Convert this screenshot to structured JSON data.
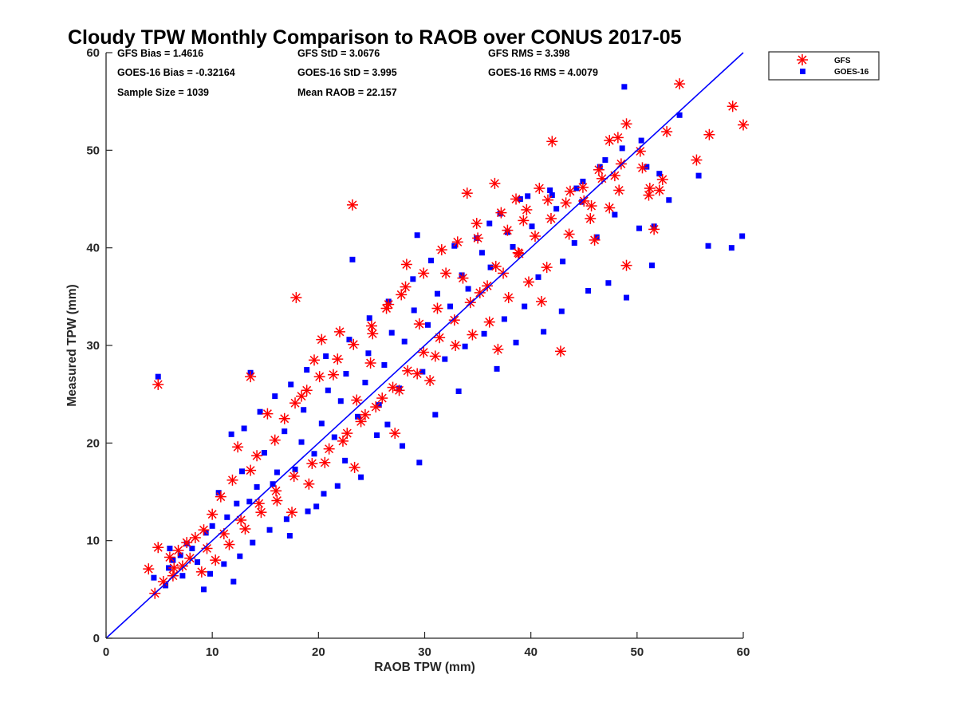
{
  "chart_data": {
    "type": "scatter",
    "title": "Cloudy TPW Monthly Comparison to RAOB over CONUS 2017-05",
    "xlabel": "RAOB TPW (mm)",
    "ylabel": "Measured TPW (mm)",
    "xlim": [
      0,
      60
    ],
    "ylim": [
      0,
      60
    ],
    "xticks": [
      0,
      10,
      20,
      30,
      40,
      50,
      60
    ],
    "yticks": [
      0,
      10,
      20,
      30,
      40,
      50,
      60
    ],
    "grid": false,
    "legend_position": "top-right (outside plot)",
    "one_to_one_line": {
      "from": [
        0,
        0
      ],
      "to": [
        60,
        60
      ],
      "color": "#0000ff"
    },
    "stats": [
      {
        "text": "GFS Bias = 1.4616"
      },
      {
        "text": "GFS StD = 3.0676"
      },
      {
        "text": "GFS RMS = 3.398"
      },
      {
        "text": "GOES-16 Bias = -0.32164"
      },
      {
        "text": "GOES-16 StD = 3.995"
      },
      {
        "text": "GOES-16 RMS = 4.0079"
      },
      {
        "text": "Sample Size = 1039"
      },
      {
        "text": "Mean RAOB = 22.157"
      }
    ],
    "series": [
      {
        "name": "GOES-16",
        "marker": "square",
        "color": "#0000ff",
        "points": [
          [
            4.9,
            26.8
          ],
          [
            23.2,
            38.8
          ],
          [
            13.6,
            27.2
          ],
          [
            48.8,
            56.5
          ],
          [
            56.7,
            40.2
          ],
          [
            58.9,
            40.0
          ],
          [
            59.9,
            41.2
          ],
          [
            49.0,
            34.9
          ],
          [
            51.4,
            38.2
          ],
          [
            47.3,
            36.4
          ],
          [
            45.4,
            35.6
          ],
          [
            29.5,
            18.0
          ],
          [
            25.5,
            20.8
          ],
          [
            22.5,
            18.2
          ],
          [
            19.8,
            13.5
          ],
          [
            17.3,
            10.5
          ],
          [
            12.0,
            5.8
          ],
          [
            9.2,
            5.0
          ],
          [
            7.2,
            6.4
          ],
          [
            5.6,
            5.4
          ],
          [
            4.5,
            6.2
          ],
          [
            6.3,
            8.0
          ],
          [
            8.1,
            9.2
          ],
          [
            10.0,
            11.5
          ],
          [
            12.3,
            13.8
          ],
          [
            14.2,
            15.5
          ],
          [
            16.1,
            17.0
          ],
          [
            18.4,
            20.1
          ],
          [
            20.3,
            22.0
          ],
          [
            22.1,
            24.3
          ],
          [
            24.4,
            26.2
          ],
          [
            26.2,
            28.0
          ],
          [
            28.1,
            30.4
          ],
          [
            30.3,
            32.1
          ],
          [
            32.4,
            34.0
          ],
          [
            34.1,
            35.8
          ],
          [
            36.2,
            38.0
          ],
          [
            38.3,
            40.1
          ],
          [
            40.1,
            42.2
          ],
          [
            42.4,
            44.0
          ],
          [
            44.3,
            46.1
          ],
          [
            46.5,
            48.3
          ],
          [
            48.6,
            50.2
          ],
          [
            50.4,
            51.0
          ],
          [
            52.1,
            47.6
          ],
          [
            53.0,
            44.9
          ],
          [
            55.8,
            47.4
          ],
          [
            54.0,
            53.6
          ],
          [
            38.6,
            30.3
          ],
          [
            42.9,
            33.5
          ],
          [
            41.2,
            31.4
          ],
          [
            36.8,
            27.6
          ],
          [
            33.2,
            25.3
          ],
          [
            31.0,
            22.9
          ],
          [
            27.9,
            19.7
          ],
          [
            26.5,
            21.9
          ],
          [
            24.0,
            16.5
          ],
          [
            21.8,
            15.6
          ],
          [
            20.5,
            14.8
          ],
          [
            19.0,
            13.0
          ],
          [
            17.0,
            12.2
          ],
          [
            15.4,
            11.1
          ],
          [
            13.8,
            9.8
          ],
          [
            12.6,
            8.4
          ],
          [
            11.1,
            7.6
          ],
          [
            9.8,
            6.6
          ],
          [
            8.6,
            7.8
          ],
          [
            7.0,
            8.5
          ],
          [
            6.0,
            9.2
          ],
          [
            11.8,
            20.9
          ],
          [
            13.0,
            21.5
          ],
          [
            14.5,
            23.2
          ],
          [
            15.9,
            24.8
          ],
          [
            17.4,
            26.0
          ],
          [
            18.9,
            27.5
          ],
          [
            20.7,
            28.9
          ],
          [
            22.9,
            30.6
          ],
          [
            24.8,
            32.8
          ],
          [
            26.6,
            34.5
          ],
          [
            28.9,
            36.8
          ],
          [
            30.6,
            38.7
          ],
          [
            32.8,
            40.2
          ],
          [
            34.9,
            41.0
          ],
          [
            37.1,
            43.5
          ],
          [
            39.7,
            45.3
          ],
          [
            41.8,
            45.9
          ],
          [
            44.9,
            46.8
          ],
          [
            47.0,
            49.0
          ],
          [
            50.9,
            48.3
          ],
          [
            51.6,
            42.2
          ],
          [
            50.2,
            42.0
          ],
          [
            47.9,
            43.4
          ],
          [
            46.2,
            41.1
          ],
          [
            44.1,
            40.5
          ],
          [
            43.0,
            38.6
          ],
          [
            40.7,
            37.0
          ],
          [
            39.4,
            34.0
          ],
          [
            37.5,
            32.7
          ],
          [
            35.6,
            31.2
          ],
          [
            33.8,
            29.9
          ],
          [
            31.9,
            28.6
          ],
          [
            29.8,
            27.3
          ],
          [
            27.6,
            25.6
          ],
          [
            25.7,
            23.9
          ],
          [
            23.7,
            22.7
          ],
          [
            21.5,
            20.6
          ],
          [
            19.6,
            18.9
          ],
          [
            17.8,
            17.3
          ],
          [
            15.7,
            15.8
          ],
          [
            13.5,
            14.0
          ],
          [
            11.4,
            12.4
          ],
          [
            9.4,
            10.8
          ],
          [
            7.6,
            9.7
          ],
          [
            5.9,
            7.2
          ],
          [
            10.6,
            14.9
          ],
          [
            12.8,
            17.1
          ],
          [
            14.9,
            19.0
          ],
          [
            16.8,
            21.2
          ],
          [
            18.6,
            23.4
          ],
          [
            20.9,
            25.4
          ],
          [
            22.6,
            27.1
          ],
          [
            24.7,
            29.2
          ],
          [
            26.9,
            31.3
          ],
          [
            29.0,
            33.6
          ],
          [
            31.2,
            35.3
          ],
          [
            33.5,
            37.2
          ],
          [
            35.4,
            39.5
          ],
          [
            37.8,
            41.6
          ],
          [
            29.3,
            41.3
          ],
          [
            36.1,
            42.5
          ],
          [
            39.0,
            45.0
          ],
          [
            42.0,
            45.4
          ],
          [
            44.8,
            44.7
          ]
        ]
      },
      {
        "name": "GFS",
        "marker": "asterisk",
        "color": "#ff0000",
        "points": [
          [
            4.9,
            26.0
          ],
          [
            23.2,
            44.4
          ],
          [
            17.9,
            34.9
          ],
          [
            13.6,
            26.8
          ],
          [
            42.0,
            50.9
          ],
          [
            42.8,
            29.4
          ],
          [
            49.0,
            38.2
          ],
          [
            54.0,
            56.8
          ],
          [
            59.0,
            54.5
          ],
          [
            60.0,
            52.6
          ],
          [
            56.8,
            51.6
          ],
          [
            55.6,
            49.0
          ],
          [
            52.8,
            51.9
          ],
          [
            51.6,
            41.9
          ],
          [
            51.2,
            46.1
          ],
          [
            49.0,
            52.7
          ],
          [
            48.5,
            48.6
          ],
          [
            47.4,
            51.0
          ],
          [
            46.0,
            40.8
          ],
          [
            45.6,
            43.0
          ],
          [
            41.0,
            34.5
          ],
          [
            36.9,
            29.6
          ],
          [
            34.9,
            42.5
          ],
          [
            34.0,
            45.6
          ],
          [
            36.6,
            46.6
          ],
          [
            38.6,
            45.0
          ],
          [
            40.8,
            46.1
          ],
          [
            39.6,
            43.9
          ],
          [
            37.8,
            41.8
          ],
          [
            38.9,
            39.4
          ],
          [
            36.7,
            38.1
          ],
          [
            35.2,
            35.4
          ],
          [
            33.6,
            36.9
          ],
          [
            32.0,
            37.4
          ],
          [
            31.2,
            33.8
          ],
          [
            29.5,
            32.2
          ],
          [
            28.3,
            38.3
          ],
          [
            27.8,
            35.2
          ],
          [
            26.4,
            33.8
          ],
          [
            25.1,
            31.2
          ],
          [
            24.9,
            28.2
          ],
          [
            23.6,
            24.4
          ],
          [
            22.0,
            31.4
          ],
          [
            21.4,
            27.0
          ],
          [
            20.3,
            30.6
          ],
          [
            19.6,
            28.5
          ],
          [
            18.9,
            25.4
          ],
          [
            17.8,
            24.1
          ],
          [
            16.8,
            22.5
          ],
          [
            15.9,
            20.3
          ],
          [
            15.2,
            23.0
          ],
          [
            14.2,
            18.7
          ],
          [
            13.6,
            17.2
          ],
          [
            12.4,
            19.6
          ],
          [
            11.9,
            16.2
          ],
          [
            10.8,
            14.5
          ],
          [
            10.0,
            12.7
          ],
          [
            9.2,
            11.1
          ],
          [
            8.4,
            10.3
          ],
          [
            7.6,
            9.8
          ],
          [
            6.8,
            9.0
          ],
          [
            6.0,
            8.3
          ],
          [
            4.9,
            9.3
          ],
          [
            4.0,
            7.1
          ],
          [
            4.6,
            4.6
          ],
          [
            5.4,
            5.8
          ],
          [
            6.3,
            6.4
          ],
          [
            7.2,
            7.4
          ],
          [
            9.0,
            6.8
          ],
          [
            10.3,
            8.0
          ],
          [
            11.6,
            9.6
          ],
          [
            13.1,
            11.2
          ],
          [
            14.6,
            12.9
          ],
          [
            16.1,
            14.1
          ],
          [
            17.5,
            12.9
          ],
          [
            19.1,
            15.8
          ],
          [
            20.6,
            18.0
          ],
          [
            22.3,
            20.2
          ],
          [
            24.0,
            22.2
          ],
          [
            25.4,
            23.7
          ],
          [
            27.0,
            25.7
          ],
          [
            28.4,
            27.4
          ],
          [
            29.9,
            29.3
          ],
          [
            31.4,
            30.8
          ],
          [
            32.8,
            32.6
          ],
          [
            34.3,
            34.4
          ],
          [
            35.9,
            36.1
          ],
          [
            37.4,
            37.4
          ],
          [
            38.8,
            39.5
          ],
          [
            40.4,
            41.2
          ],
          [
            41.9,
            43.0
          ],
          [
            43.3,
            44.6
          ],
          [
            44.9,
            46.2
          ],
          [
            46.4,
            48.0
          ],
          [
            47.9,
            47.4
          ],
          [
            48.3,
            45.9
          ],
          [
            50.5,
            48.2
          ],
          [
            52.4,
            47.0
          ],
          [
            47.4,
            44.1
          ],
          [
            45.0,
            44.8
          ],
          [
            43.6,
            41.4
          ],
          [
            41.5,
            38.0
          ],
          [
            39.8,
            36.5
          ],
          [
            37.9,
            34.9
          ],
          [
            36.1,
            32.4
          ],
          [
            34.5,
            31.1
          ],
          [
            32.9,
            30.0
          ],
          [
            31.0,
            28.9
          ],
          [
            29.3,
            27.1
          ],
          [
            27.6,
            25.4
          ],
          [
            26.0,
            24.6
          ],
          [
            24.4,
            22.9
          ],
          [
            22.7,
            21.0
          ],
          [
            21.0,
            19.4
          ],
          [
            19.4,
            17.9
          ],
          [
            17.7,
            16.6
          ],
          [
            16.0,
            15.1
          ],
          [
            14.4,
            13.8
          ],
          [
            12.7,
            12.1
          ],
          [
            11.1,
            10.7
          ],
          [
            9.5,
            9.2
          ],
          [
            7.9,
            8.2
          ],
          [
            6.4,
            7.2
          ],
          [
            23.4,
            17.5
          ],
          [
            27.2,
            21.0
          ],
          [
            30.5,
            26.4
          ],
          [
            18.4,
            24.8
          ],
          [
            20.1,
            26.8
          ],
          [
            21.8,
            28.6
          ],
          [
            23.3,
            30.1
          ],
          [
            25.0,
            32.0
          ],
          [
            26.6,
            34.2
          ],
          [
            28.2,
            36.0
          ],
          [
            29.9,
            37.4
          ],
          [
            31.6,
            39.8
          ],
          [
            33.1,
            40.6
          ],
          [
            35.0,
            41.0
          ],
          [
            37.2,
            43.6
          ],
          [
            39.3,
            42.8
          ],
          [
            41.6,
            44.9
          ],
          [
            43.7,
            45.8
          ],
          [
            45.7,
            44.3
          ],
          [
            46.7,
            47.1
          ],
          [
            48.2,
            51.3
          ],
          [
            50.3,
            49.9
          ],
          [
            52.1,
            45.9
          ],
          [
            51.1,
            45.4
          ]
        ]
      }
    ]
  }
}
